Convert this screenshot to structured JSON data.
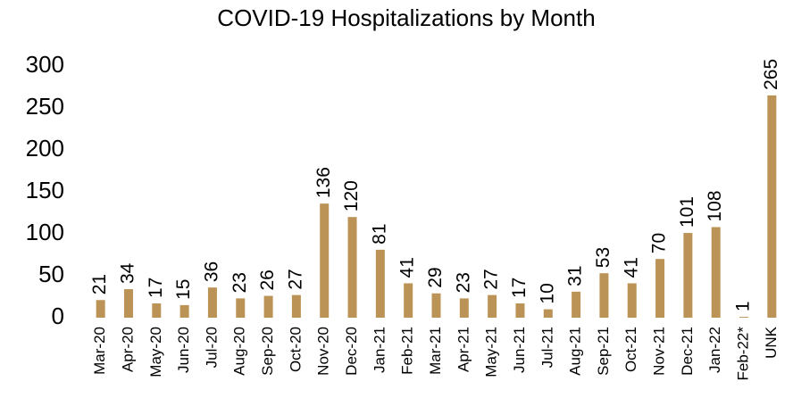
{
  "chart_data": {
    "type": "bar",
    "title": "COVID-19 Hospitalizations by Month",
    "categories": [
      "Mar-20",
      "Apr-20",
      "May-20",
      "Jun-20",
      "Jul-20",
      "Aug-20",
      "Sep-20",
      "Oct-20",
      "Nov-20",
      "Dec-20",
      "Jan-21",
      "Feb-21",
      "Mar-21",
      "Apr-21",
      "May-21",
      "Jun-21",
      "Jul-21",
      "Aug-21",
      "Sep-21",
      "Oct-21",
      "Nov-21",
      "Dec-21",
      "Jan-22",
      "Feb-22*",
      "UNK"
    ],
    "values": [
      21,
      34,
      17,
      15,
      36,
      23,
      26,
      27,
      136,
      120,
      81,
      41,
      29,
      23,
      27,
      17,
      10,
      31,
      53,
      41,
      70,
      101,
      108,
      1,
      265
    ],
    "color": "#bc9356",
    "ylim": [
      0,
      300
    ],
    "yticks": [
      0,
      50,
      100,
      150,
      200,
      250,
      300
    ],
    "grid": false
  }
}
